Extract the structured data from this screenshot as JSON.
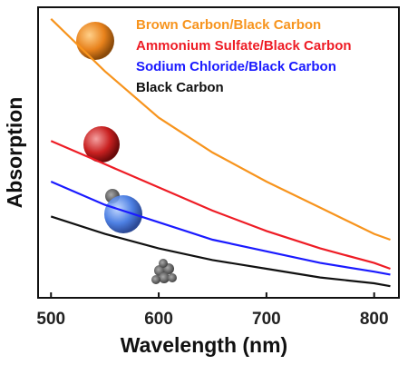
{
  "chart_data": {
    "type": "line",
    "x_label": "Wavelength (nm)",
    "y_label": "Absorption",
    "xlim": [
      488,
      823
    ],
    "xticks": [
      500,
      600,
      700,
      800
    ],
    "ylim": [
      0,
      1
    ],
    "x": [
      500,
      550,
      600,
      650,
      700,
      750,
      800,
      815
    ],
    "legend_position": "upper right",
    "series": [
      {
        "name": "Brown Carbon/Black Carbon",
        "color": "#f7941d",
        "values": [
          0.96,
          0.78,
          0.62,
          0.5,
          0.4,
          0.31,
          0.22,
          0.2
        ]
      },
      {
        "name": "Ammonium Sulfate/Black Carbon",
        "color": "#ee1c25",
        "values": [
          0.54,
          0.46,
          0.38,
          0.3,
          0.23,
          0.17,
          0.12,
          0.1
        ]
      },
      {
        "name": "Sodium Chloride/Black Carbon",
        "color": "#1a1aff",
        "values": [
          0.4,
          0.32,
          0.26,
          0.2,
          0.16,
          0.12,
          0.09,
          0.08
        ]
      },
      {
        "name": "Black Carbon",
        "color": "#111111",
        "values": [
          0.28,
          0.22,
          0.17,
          0.13,
          0.1,
          0.07,
          0.05,
          0.04
        ]
      }
    ]
  }
}
